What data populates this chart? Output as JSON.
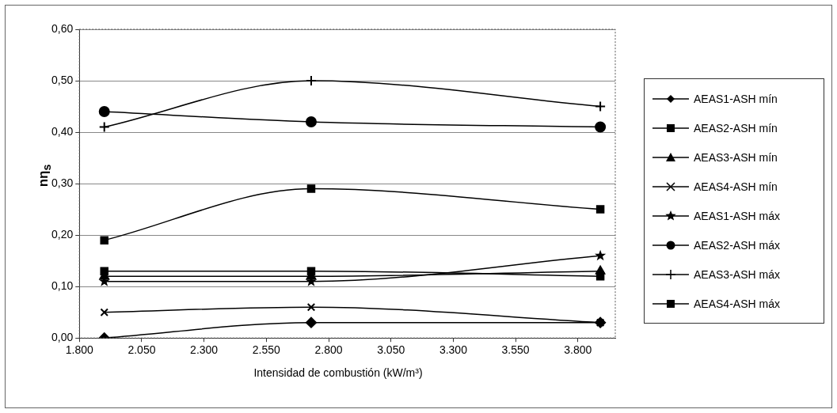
{
  "chart_data": {
    "type": "line",
    "xlabel": "Intensidad de combustión (kW/m³)",
    "ylabel": "nη$_{s}$",
    "x": [
      1900,
      2730,
      3890
    ],
    "xlim": [
      1800,
      3950
    ],
    "xticks": [
      {
        "value": 1800,
        "label": "1.800"
      },
      {
        "value": 2050,
        "label": "2.050"
      },
      {
        "value": 2300,
        "label": "2.300"
      },
      {
        "value": 2550,
        "label": "2.550"
      },
      {
        "value": 2800,
        "label": "2.800"
      },
      {
        "value": 3050,
        "label": "3.050"
      },
      {
        "value": 3300,
        "label": "3.300"
      },
      {
        "value": 3550,
        "label": "3.550"
      },
      {
        "value": 3800,
        "label": "3.800"
      }
    ],
    "ylim": [
      0,
      0.6
    ],
    "yticks": [
      {
        "value": 0,
        "label": "0,00"
      },
      {
        "value": 0.1,
        "label": "0,10"
      },
      {
        "value": 0.2,
        "label": "0,20"
      },
      {
        "value": 0.3,
        "label": "0,30"
      },
      {
        "value": 0.4,
        "label": "0,40"
      },
      {
        "value": 0.5,
        "label": "0,50"
      },
      {
        "value": 0.6,
        "label": "0,60"
      }
    ],
    "grid": "y",
    "legend": "right",
    "line_style": "solid",
    "series": [
      {
        "name": "AEAS1-ASH mín",
        "color": "#000000",
        "marker": "diamond",
        "values": [
          0.0,
          0.03,
          0.03
        ]
      },
      {
        "name": "AEAS2-ASH mín",
        "color": "#000000",
        "marker": "square",
        "values": [
          0.13,
          0.13,
          0.12
        ]
      },
      {
        "name": "AEAS3-ASH mín",
        "color": "#000000",
        "marker": "triangle",
        "values": [
          0.12,
          0.12,
          0.13
        ]
      },
      {
        "name": "AEAS4-ASH mín",
        "color": "#000000",
        "marker": "x",
        "values": [
          0.05,
          0.06,
          0.03
        ]
      },
      {
        "name": "AEAS1-ASH máx",
        "color": "#000000",
        "marker": "star",
        "values": [
          0.11,
          0.11,
          0.16
        ]
      },
      {
        "name": "AEAS2-ASH máx",
        "color": "#000000",
        "marker": "circle",
        "values": [
          0.44,
          0.42,
          0.41
        ]
      },
      {
        "name": "AEAS3-ASH máx",
        "color": "#000000",
        "marker": "cross",
        "values": [
          0.41,
          0.5,
          0.45
        ]
      },
      {
        "name": "AEAS4-ASH máx",
        "color": "#000000",
        "marker": "square",
        "values": [
          0.19,
          0.29,
          0.25
        ]
      }
    ]
  }
}
